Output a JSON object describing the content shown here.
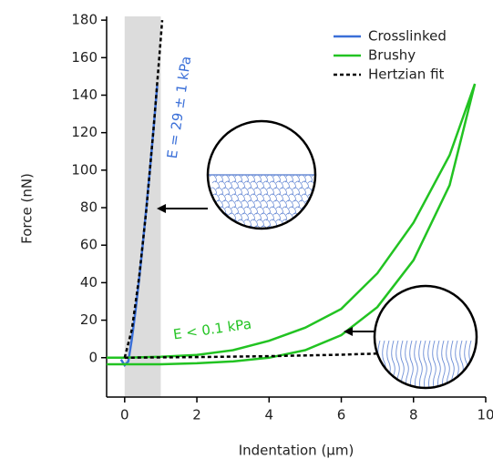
{
  "chart_data": {
    "type": "line",
    "xlabel": "Indentation (µm)",
    "ylabel": "Force (nN)",
    "xlim": [
      -0.5,
      10
    ],
    "ylim": [
      -21,
      182
    ],
    "xticks": [
      0,
      2,
      4,
      6,
      8,
      10
    ],
    "yticks": [
      0,
      20,
      40,
      60,
      80,
      100,
      120,
      140,
      160,
      180
    ],
    "shaded_region": [
      0,
      1
    ],
    "legend": "upper right",
    "annotations": [
      "E = 29 ± 1 kPa",
      "E < 0.1 kPa"
    ],
    "series": [
      {
        "name": "Crosslinked",
        "color": "#3a6fd8",
        "dash": false,
        "x": [
          -0.1,
          0,
          0.1,
          0.2,
          0.3,
          0.4,
          0.5,
          0.6,
          0.7,
          0.8,
          0.9
        ],
        "values": [
          -1,
          -4,
          -2,
          10,
          25,
          42,
          60,
          80,
          100,
          122,
          145
        ]
      },
      {
        "name": "Brushy",
        "color": "#22c322",
        "dash": false,
        "x": [
          -0.5,
          0,
          1,
          2,
          3,
          4,
          5,
          6,
          7,
          8,
          9,
          9.7,
          9,
          8,
          7,
          6,
          5,
          4,
          3,
          2,
          1,
          0,
          -0.5
        ],
        "values": [
          0,
          0,
          0.5,
          1.5,
          4,
          9,
          16,
          26,
          45,
          72,
          108,
          146,
          92,
          52,
          27,
          12,
          4,
          0,
          -2,
          -3,
          -3.5,
          -3.5,
          -3.5
        ]
      },
      {
        "name": "Hertzian fit",
        "color": "#000000",
        "dash": true,
        "x": [
          0,
          0.2,
          0.4,
          0.6,
          0.8,
          1.0,
          1.04,
          null,
          0,
          2,
          4,
          6,
          7
        ],
        "values": [
          0,
          15,
          43,
          79,
          122,
          170,
          180,
          null,
          0,
          0.3,
          0.8,
          1.6,
          2.2
        ]
      }
    ]
  }
}
